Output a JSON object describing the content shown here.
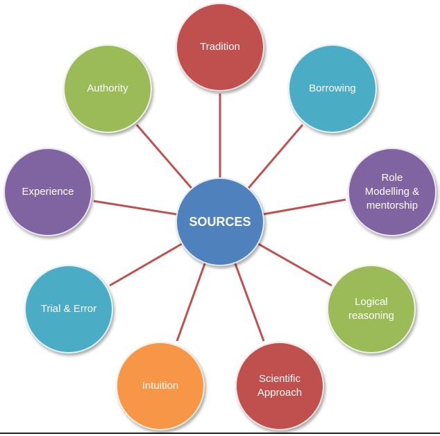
{
  "center": {
    "label": "SOURCES",
    "color": "#4f81bd"
  },
  "nodes": [
    {
      "id": "tradition",
      "label": "Tradition",
      "color": "#c0504d"
    },
    {
      "id": "borrowing",
      "label": "Borrowing",
      "color": "#4bacc6"
    },
    {
      "id": "role-modelling",
      "label": "Role\nModelling &\nmentorship",
      "color": "#8064a2"
    },
    {
      "id": "logical",
      "label": "Logical\nreasoning",
      "color": "#9bbb59"
    },
    {
      "id": "scientific",
      "label": "Scientific\nApproach",
      "color": "#c0504d"
    },
    {
      "id": "intuition",
      "label": "Intuition",
      "color": "#f79646"
    },
    {
      "id": "trial-error",
      "label": "Trial & Error",
      "color": "#4bacc6"
    },
    {
      "id": "experience",
      "label": "Experience",
      "color": "#8064a2"
    },
    {
      "id": "authority",
      "label": "Authority",
      "color": "#9bbb59"
    }
  ],
  "connector_color": "#c0504d"
}
